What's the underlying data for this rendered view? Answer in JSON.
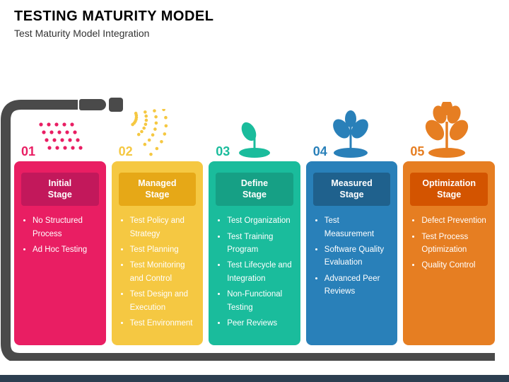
{
  "title": "TESTING MATURITY MODEL",
  "subtitle": "Test Maturity Model Integration",
  "hose_color": "#4a4a4a",
  "footer_color": "#2c3e50",
  "stages": [
    {
      "num": "01",
      "name": "Initial Stage",
      "card_color": "#e91e63",
      "badge_color": "#c2185b",
      "num_color": "#e91e63",
      "deco_type": "dots",
      "deco_color": "#e91e63",
      "items": [
        "No Structured Process",
        "Ad Hoc Testing"
      ]
    },
    {
      "num": "02",
      "name": "Managed Stage",
      "card_color": "#f5c842",
      "badge_color": "#e6a817",
      "num_color": "#f5c842",
      "deco_type": "spray",
      "deco_color": "#f5c842",
      "items": [
        "Test Policy and Strategy",
        "Test Planning",
        "Test Monitoring and Control",
        "Test Design and Execution",
        "Test Environment"
      ]
    },
    {
      "num": "03",
      "name": "Define Stage",
      "card_color": "#1abc9c",
      "badge_color": "#16a085",
      "num_color": "#1abc9c",
      "deco_type": "sprout",
      "deco_color": "#1abc9c",
      "items": [
        "Test Organization",
        "Test Training Program",
        "Test Lifecycle and Integration",
        "Non-Functional Testing",
        "Peer Reviews"
      ]
    },
    {
      "num": "04",
      "name": "Measured Stage",
      "card_color": "#2980b9",
      "badge_color": "#1f618d",
      "num_color": "#2980b9",
      "deco_type": "plant",
      "deco_color": "#2980b9",
      "items": [
        "Test Measurement",
        "Software Quality Evaluation",
        "Advanced Peer Reviews"
      ]
    },
    {
      "num": "05",
      "name": "Optimization Stage",
      "card_color": "#e67e22",
      "badge_color": "#d35400",
      "num_color": "#e67e22",
      "deco_type": "tree",
      "deco_color": "#e67e22",
      "items": [
        "Defect Prevention",
        "Test Process Optimization",
        "Quality Control"
      ]
    }
  ]
}
